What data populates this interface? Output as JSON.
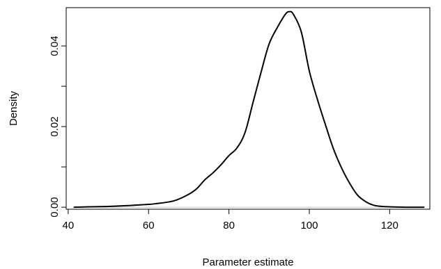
{
  "chart_data": {
    "type": "line",
    "title": "",
    "xlabel": "Parameter estimate",
    "ylabel": "Density",
    "xlim": [
      39.5,
      130
    ],
    "ylim": [
      -0.0005,
      0.0495
    ],
    "x_ticks": [
      40,
      60,
      80,
      100,
      120
    ],
    "x_tick_labels": [
      "40",
      "60",
      "80",
      "100",
      "120"
    ],
    "y_ticks": [
      0.0,
      0.01,
      0.02,
      0.03,
      0.04
    ],
    "y_tick_labels": [
      "0.00",
      "",
      "0.02",
      "",
      "0.04"
    ],
    "baseline": 0,
    "grid": false,
    "legend": "none",
    "series": [
      {
        "x": [
          41.5,
          45,
          50,
          55,
          60,
          62,
          65,
          67,
          70,
          72,
          74,
          76,
          78,
          80,
          82,
          84,
          86,
          88,
          90,
          92,
          94,
          95,
          96,
          98,
          100,
          102,
          104,
          106,
          108,
          110,
          112,
          114,
          116,
          118,
          120,
          124,
          128.5
        ],
        "y": [
          0.0,
          0.0001,
          0.0002,
          0.0004,
          0.0007,
          0.0009,
          0.0013,
          0.0018,
          0.0032,
          0.0046,
          0.0068,
          0.0085,
          0.0105,
          0.0128,
          0.0147,
          0.0185,
          0.026,
          0.0335,
          0.0405,
          0.0445,
          0.0478,
          0.0485,
          0.0479,
          0.0435,
          0.0338,
          0.0268,
          0.0205,
          0.0145,
          0.0098,
          0.006,
          0.003,
          0.0014,
          0.0005,
          0.0002,
          0.0001,
          0.0,
          0.0
        ],
        "color": "#000000"
      }
    ]
  },
  "colors": {
    "curve": "#000000",
    "baseline": "#bebebe",
    "axes": "#000000"
  }
}
